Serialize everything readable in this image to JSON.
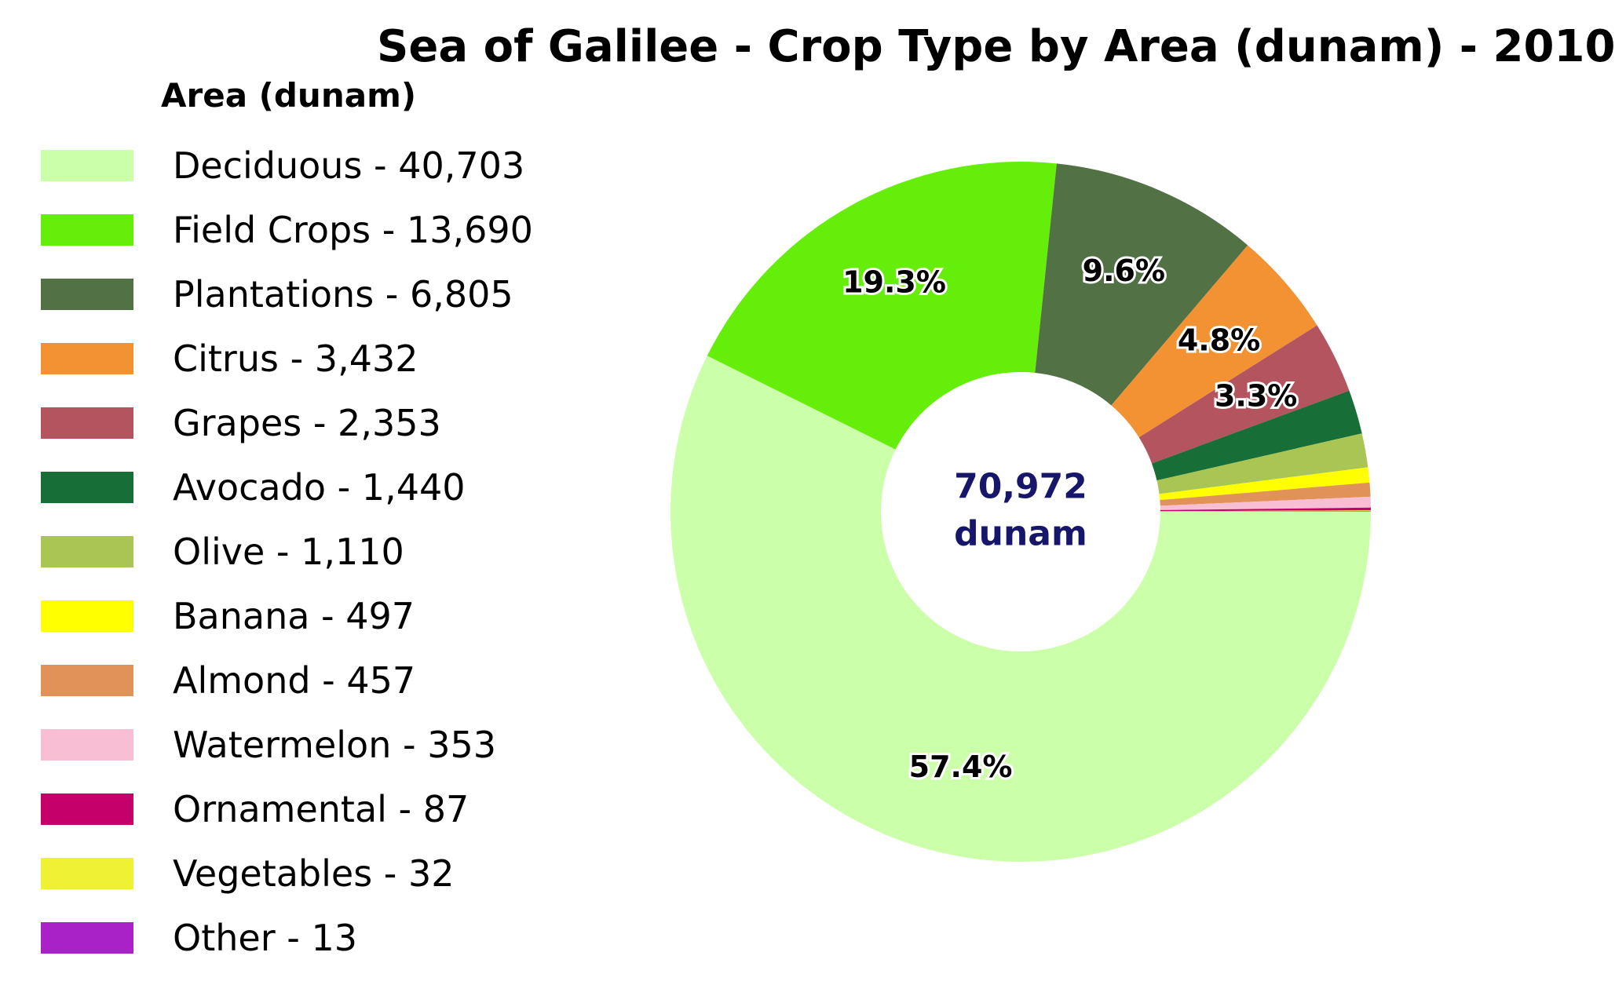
{
  "chart_data": {
    "type": "pie",
    "style": "donut",
    "title": "Sea of Galilee - Crop Type by Area (dunam) - 2010",
    "legend_title": "Area (dunam)",
    "legend_position": "left",
    "center_label": {
      "value": "70,972",
      "unit": "dunam",
      "color": "#16166b"
    },
    "slices": [
      {
        "label": "Deciduous - 40,703",
        "name": "Deciduous",
        "value": 40703,
        "color": "#ccffaa",
        "pct_label": "57.4%"
      },
      {
        "label": "Field Crops - 13,690",
        "name": "Field Crops",
        "value": 13690,
        "color": "#66ee0b",
        "pct_label": "19.3%"
      },
      {
        "label": "Plantations - 6,805",
        "name": "Plantations",
        "value": 6805,
        "color": "#527145",
        "pct_label": "9.6%"
      },
      {
        "label": "Citrus - 3,432",
        "name": "Citrus",
        "value": 3432,
        "color": "#f39233",
        "pct_label": "4.8%"
      },
      {
        "label": "Grapes - 2,353",
        "name": "Grapes",
        "value": 2353,
        "color": "#b4545e",
        "pct_label": "3.3%"
      },
      {
        "label": "Avocado - 1,440",
        "name": "Avocado",
        "value": 1440,
        "color": "#186e37",
        "pct_label": ""
      },
      {
        "label": "Olive - 1,110",
        "name": "Olive",
        "value": 1110,
        "color": "#a9c654",
        "pct_label": ""
      },
      {
        "label": "Banana - 497",
        "name": "Banana",
        "value": 497,
        "color": "#ffff00",
        "pct_label": ""
      },
      {
        "label": "Almond - 457",
        "name": "Almond",
        "value": 457,
        "color": "#e09258",
        "pct_label": ""
      },
      {
        "label": "Watermelon - 353",
        "name": "Watermelon",
        "value": 353,
        "color": "#f8bfd4",
        "pct_label": ""
      },
      {
        "label": "Ornamental - 87",
        "name": "Ornamental",
        "value": 87,
        "color": "#c5006b",
        "pct_label": ""
      },
      {
        "label": "Vegetables - 32",
        "name": "Vegetables",
        "value": 32,
        "color": "#eef233",
        "pct_label": ""
      },
      {
        "label": "Other - 13",
        "name": "Other",
        "value": 13,
        "color": "#a922c8",
        "pct_label": ""
      }
    ]
  }
}
